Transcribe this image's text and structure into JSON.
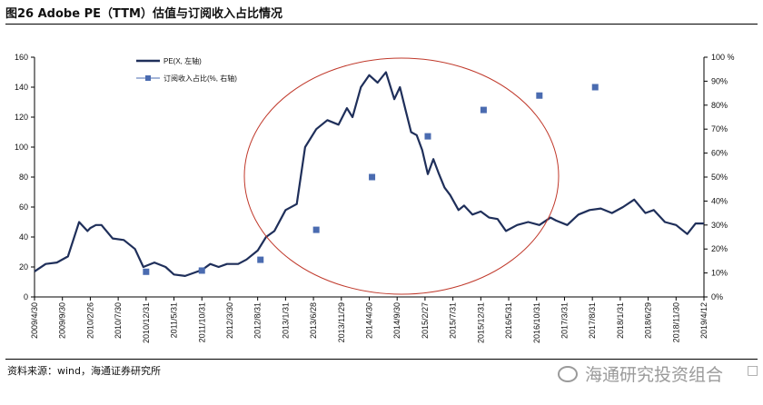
{
  "title": "图26 Adobe PE（TTM）估值与订阅收入占比情况",
  "source": "资料来源：wind，海通证券研究所",
  "watermark": "海通研究投资组合",
  "colors": {
    "pe_line": "#1f2f5a",
    "ratio_marker": "#4a6bb0",
    "ellipse": "#c0392b"
  },
  "chart_data": {
    "type": "line",
    "x_tick_labels": [
      "2009/4/30",
      "2009/9/30",
      "2010/2/26",
      "2010/7/30",
      "2010/12/31",
      "2011/5/31",
      "2011/10/31",
      "2012/3/30",
      "2012/8/31",
      "2013/1/31",
      "2013/6/28",
      "2013/11/29",
      "2014/4/30",
      "2014/9/30",
      "2015/2/27",
      "2015/7/31",
      "2015/12/31",
      "2016/5/31",
      "2016/10/31",
      "2017/3/31",
      "2017/8/31",
      "2018/1/31",
      "2018/6/29",
      "2018/11/30",
      "2019/4/12"
    ],
    "y_left": {
      "min": 0,
      "max": 160,
      "ticks": [
        0,
        20,
        40,
        60,
        80,
        100,
        120,
        140,
        160
      ]
    },
    "y_right": {
      "min": 0,
      "max": 100,
      "ticks": [
        "0%",
        "10%",
        "20%",
        "30%",
        "40%",
        "50%",
        "60%",
        "70%",
        "80%",
        "90%",
        "100 %"
      ]
    },
    "legend": {
      "position": "top-left",
      "pe_label": "PE(X, 左轴)",
      "ratio_label": "订阅收入占比(%, 右轴)"
    },
    "series": [
      {
        "name": "PE(X, 左轴)",
        "axis": "left",
        "x_index": [
          0,
          0.4,
          0.8,
          1.2,
          1.6,
          1.9,
          2.0,
          2.2,
          2.4,
          2.8,
          3.2,
          3.6,
          3.9,
          4.3,
          4.7,
          5.0,
          5.4,
          5.7,
          6.0,
          6.3,
          6.6,
          6.9,
          7.3,
          7.6,
          8.0,
          8.3,
          8.6,
          9.0,
          9.4,
          9.7,
          10.1,
          10.5,
          10.9,
          11.2,
          11.4,
          11.7,
          12.0,
          12.3,
          12.6,
          12.9,
          13.1,
          13.3,
          13.5,
          13.7,
          13.9,
          14.1,
          14.3,
          14.5,
          14.7,
          14.9,
          15.2,
          15.4,
          15.7,
          16.0,
          16.3,
          16.6,
          16.9,
          17.3,
          17.7,
          18.1,
          18.5,
          18.7,
          19.1,
          19.5,
          19.9,
          20.3,
          20.7,
          21.1,
          21.5,
          21.9,
          22.2,
          22.6,
          23.0,
          23.4,
          23.7,
          24.0
        ],
        "values": [
          17,
          22,
          23,
          27,
          50,
          44,
          46,
          48,
          48,
          39,
          38,
          32,
          20,
          23,
          20,
          15,
          14,
          16,
          18,
          22,
          20,
          22,
          22,
          25,
          31,
          40,
          44,
          58,
          62,
          100,
          112,
          118,
          115,
          126,
          120,
          140,
          148,
          143,
          150,
          132,
          140,
          125,
          110,
          108,
          98,
          82,
          92,
          82,
          73,
          68,
          58,
          61,
          55,
          57,
          53,
          52,
          44,
          48,
          50,
          48,
          53,
          51,
          48,
          55,
          58,
          59,
          56,
          60,
          65,
          56,
          58,
          50,
          48,
          42,
          49,
          49
        ]
      },
      {
        "name": "订阅收入占比(%, 右轴)",
        "axis": "right",
        "x_index": [
          4.0,
          6.0,
          8.1,
          10.1,
          12.1,
          14.1,
          16.1,
          18.1,
          20.1
        ],
        "values": [
          10.5,
          11,
          15.5,
          28,
          50,
          67,
          78,
          84,
          87.5
        ]
      }
    ],
    "highlight": "ellipse"
  }
}
